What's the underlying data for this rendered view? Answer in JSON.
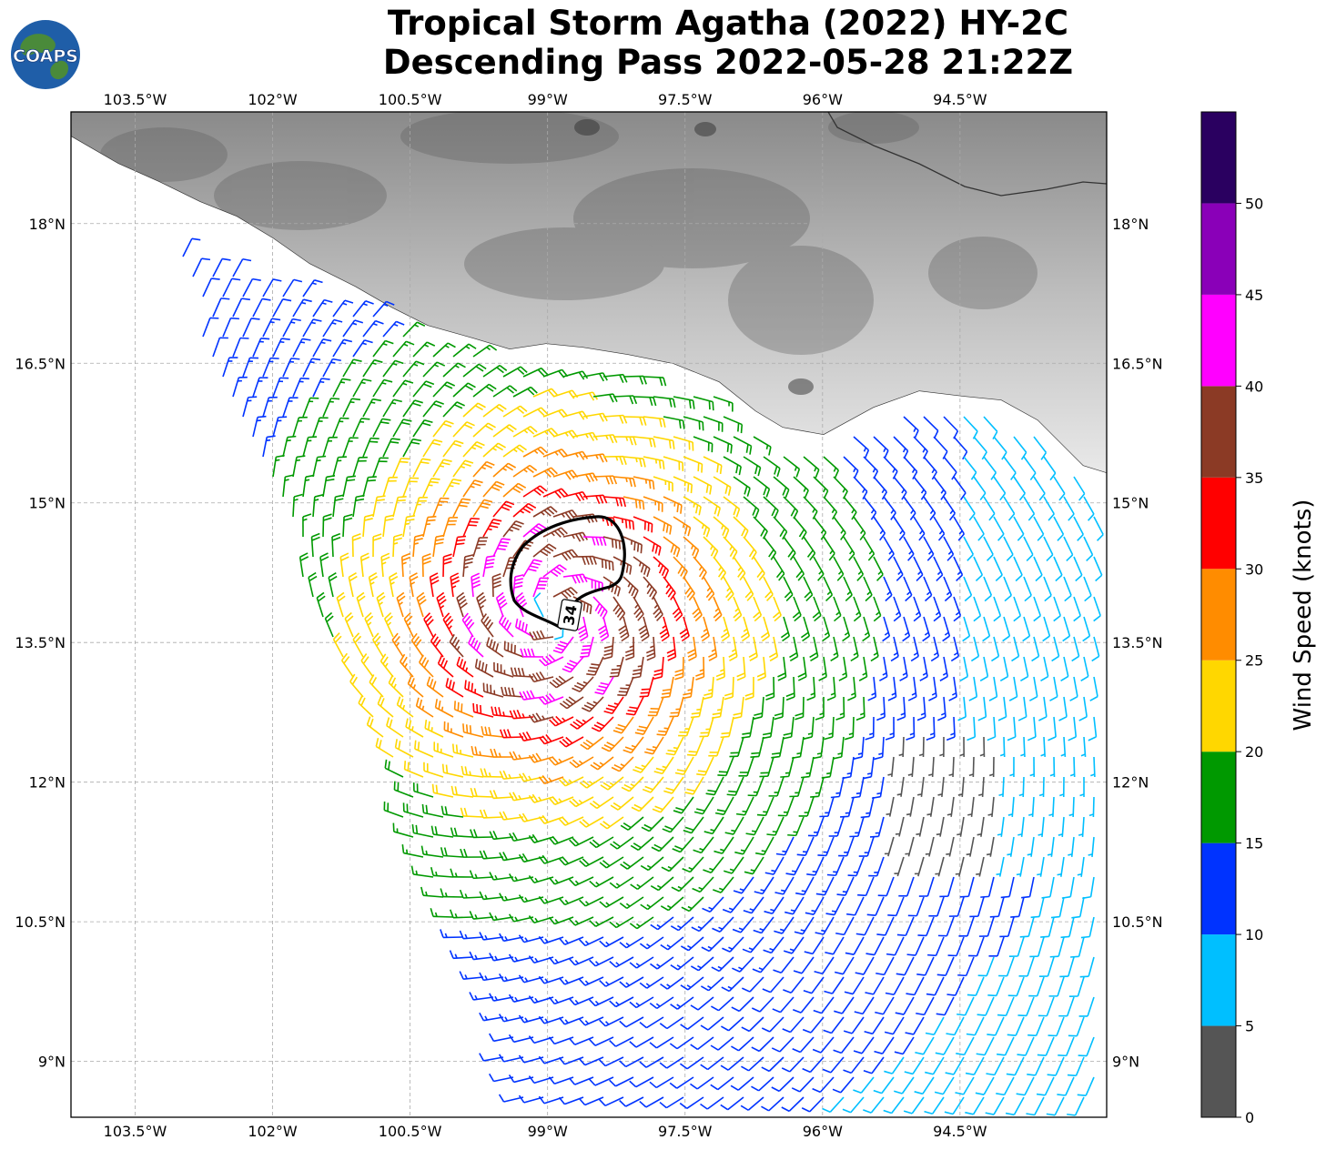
{
  "title": {
    "line1": "Tropical Storm Agatha (2022) HY-2C",
    "line2": "Descending Pass 2022-05-28 21:22Z"
  },
  "logo": {
    "text": "COAPS",
    "icon": "globe-logo-icon"
  },
  "map": {
    "lon_range": [
      -104.2,
      -92.9
    ],
    "lat_range": [
      8.4,
      19.2
    ],
    "lon_ticks": [
      {
        "value": -103.5,
        "label": "103.5°W"
      },
      {
        "value": -102.0,
        "label": "102°W"
      },
      {
        "value": -100.5,
        "label": "100.5°W"
      },
      {
        "value": -99.0,
        "label": "99°W"
      },
      {
        "value": -97.5,
        "label": "97.5°W"
      },
      {
        "value": -96.0,
        "label": "96°W"
      },
      {
        "value": -94.5,
        "label": "94.5°W"
      }
    ],
    "lat_ticks": [
      {
        "value": 18.0,
        "label": "18°N"
      },
      {
        "value": 16.5,
        "label": "16.5°N"
      },
      {
        "value": 15.0,
        "label": "15°N"
      },
      {
        "value": 13.5,
        "label": "13.5°N"
      },
      {
        "value": 12.0,
        "label": "12°N"
      },
      {
        "value": 10.5,
        "label": "10.5°N"
      },
      {
        "value": 9.0,
        "label": "9°N"
      }
    ],
    "gridlines": true,
    "wind_radius_label": "34",
    "storm_center": {
      "lon": -98.9,
      "lat": 13.8
    }
  },
  "colorbar": {
    "label": "Wind Speed (knots)",
    "bins": [
      {
        "from": 0,
        "to": 5,
        "color": "#555555"
      },
      {
        "from": 5,
        "to": 10,
        "color": "#00bfff"
      },
      {
        "from": 10,
        "to": 15,
        "color": "#0033ff"
      },
      {
        "from": 15,
        "to": 20,
        "color": "#009900"
      },
      {
        "from": 20,
        "to": 25,
        "color": "#ffd700"
      },
      {
        "from": 25,
        "to": 30,
        "color": "#ff8c00"
      },
      {
        "from": 30,
        "to": 35,
        "color": "#ff0000"
      },
      {
        "from": 35,
        "to": 40,
        "color": "#8b3a25"
      },
      {
        "from": 40,
        "to": 45,
        "color": "#ff00ff"
      },
      {
        "from": 45,
        "to": 50,
        "color": "#8a00b8"
      },
      {
        "from": 50,
        "to": 55,
        "color": "#2a0060"
      }
    ],
    "tick_labels": [
      "0",
      "5",
      "10",
      "15",
      "20",
      "25",
      "30",
      "35",
      "40",
      "45",
      "50"
    ]
  }
}
